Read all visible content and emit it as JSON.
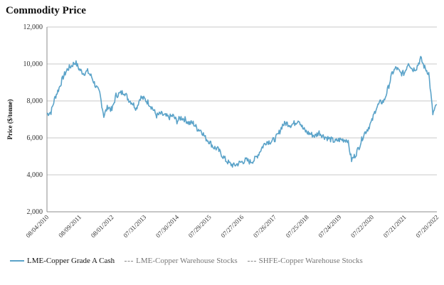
{
  "title": "Commodity Price",
  "colors": {
    "series": "#5ba3c9",
    "grid": "#c9c9c9"
  },
  "chart_data": {
    "type": "line",
    "title": "Commodity Price",
    "ylabel": "Price ($/tonne)",
    "xlabel": "",
    "ylim": [
      2000,
      12000
    ],
    "y_ticks": [
      2000,
      4000,
      6000,
      8000,
      10000,
      12000
    ],
    "y_tick_labels": [
      "2,000",
      "4,000",
      "6,000",
      "8,000",
      "10,000",
      "12,000"
    ],
    "x_tick_labels": [
      "08/04/2010",
      "08/09/2011",
      "08/01/2012",
      "07/31/2013",
      "07/30/2014",
      "07/29/2015",
      "07/27/2016",
      "07/26/2017",
      "07/25/2018",
      "07/24/2019",
      "07/22/2020",
      "07/21/2021",
      "07/20/2022"
    ],
    "grid": true,
    "legend": "bottom",
    "series": [
      {
        "name": "LME-Copper Grade A Cash",
        "values": [
          7300,
          7400,
          8200,
          8700,
          9300,
          9700,
          9900,
          10100,
          9700,
          9500,
          9600,
          9300,
          8800,
          8400,
          7200,
          7700,
          7500,
          8300,
          8400,
          8500,
          8100,
          7900,
          7600,
          8200,
          8100,
          7900,
          7600,
          7200,
          7300,
          7200,
          7100,
          7200,
          6900,
          7100,
          7000,
          6800,
          6800,
          6500,
          6400,
          6000,
          5800,
          5500,
          5400,
          5100,
          4800,
          4600,
          4500,
          4600,
          4700,
          4800,
          4700,
          4800,
          5100,
          5500,
          5800,
          5800,
          5900,
          6200,
          6700,
          6800,
          6700,
          6800,
          7000,
          6500,
          6300,
          6200,
          6100,
          6300,
          6100,
          6000,
          5900,
          5800,
          5900,
          5900,
          5900,
          4800,
          5100,
          5600,
          6200,
          6500,
          6900,
          7600,
          7900,
          8000,
          8700,
          9500,
          9800,
          9500,
          9500,
          10100,
          9700,
          9800,
          10300,
          9800,
          9500,
          7300,
          7800
        ]
      },
      {
        "name": "LME-Copper Warehouse Stocks",
        "values": []
      },
      {
        "name": "SHFE-Copper Warehouse Stocks",
        "values": []
      }
    ]
  },
  "legend": {
    "item1": "LME-Copper Grade A Cash",
    "item2": "LME-Copper Warehouse Stocks",
    "item3": "SHFE-Copper Warehouse Stocks"
  }
}
